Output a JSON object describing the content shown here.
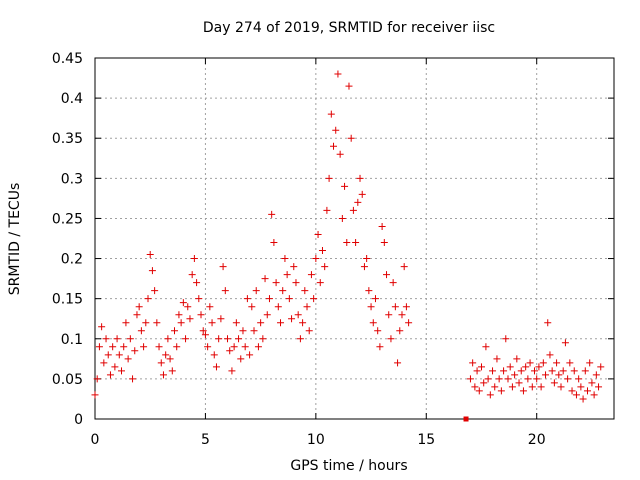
{
  "chart_data": {
    "type": "scatter",
    "title": "Day 274 of 2019, SRMTID for receiver iisc",
    "xlabel": "GPS time / hours",
    "ylabel": "SRMTID / TECUs",
    "xlim": [
      0,
      23.5
    ],
    "ylim": [
      0,
      0.45
    ],
    "xticks": [
      0,
      5,
      10,
      15,
      20
    ],
    "yticks": [
      0,
      0.05,
      0.1,
      0.15,
      0.2,
      0.25,
      0.3,
      0.35,
      0.4,
      0.45
    ],
    "x_tick_labels": [
      "0",
      "5",
      "10",
      "15",
      "20"
    ],
    "y_tick_labels": [
      "0",
      "0.05",
      "0.1",
      "0.15",
      "0.2",
      "0.25",
      "0.3",
      "0.35",
      "0.4",
      "0.45"
    ],
    "grid": true,
    "marker": "+",
    "color": "#e00000",
    "series": [
      {
        "name": "SRMTID",
        "points": [
          [
            0.0,
            0.03
          ],
          [
            0.1,
            0.05
          ],
          [
            0.2,
            0.09
          ],
          [
            0.3,
            0.115
          ],
          [
            0.4,
            0.07
          ],
          [
            0.5,
            0.1
          ],
          [
            0.6,
            0.08
          ],
          [
            0.7,
            0.055
          ],
          [
            0.8,
            0.09
          ],
          [
            0.9,
            0.065
          ],
          [
            1.0,
            0.1
          ],
          [
            1.1,
            0.08
          ],
          [
            1.2,
            0.06
          ],
          [
            1.3,
            0.09
          ],
          [
            1.4,
            0.12
          ],
          [
            1.5,
            0.075
          ],
          [
            1.6,
            0.1
          ],
          [
            1.7,
            0.05
          ],
          [
            1.8,
            0.085
          ],
          [
            1.9,
            0.13
          ],
          [
            2.0,
            0.14
          ],
          [
            2.1,
            0.11
          ],
          [
            2.2,
            0.09
          ],
          [
            2.3,
            0.12
          ],
          [
            2.4,
            0.15
          ],
          [
            2.5,
            0.205
          ],
          [
            2.6,
            0.185
          ],
          [
            2.7,
            0.16
          ],
          [
            2.8,
            0.12
          ],
          [
            2.9,
            0.09
          ],
          [
            3.0,
            0.07
          ],
          [
            3.1,
            0.055
          ],
          [
            3.2,
            0.08
          ],
          [
            3.3,
            0.1
          ],
          [
            3.4,
            0.075
          ],
          [
            3.5,
            0.06
          ],
          [
            3.6,
            0.11
          ],
          [
            3.7,
            0.09
          ],
          [
            3.8,
            0.13
          ],
          [
            3.9,
            0.12
          ],
          [
            4.0,
            0.145
          ],
          [
            4.1,
            0.1
          ],
          [
            4.2,
            0.14
          ],
          [
            4.3,
            0.125
          ],
          [
            4.4,
            0.18
          ],
          [
            4.5,
            0.2
          ],
          [
            4.6,
            0.17
          ],
          [
            4.7,
            0.15
          ],
          [
            4.8,
            0.13
          ],
          [
            4.9,
            0.11
          ],
          [
            5.0,
            0.105
          ],
          [
            5.1,
            0.09
          ],
          [
            5.2,
            0.14
          ],
          [
            5.3,
            0.12
          ],
          [
            5.4,
            0.08
          ],
          [
            5.5,
            0.065
          ],
          [
            5.6,
            0.1
          ],
          [
            5.7,
            0.125
          ],
          [
            5.8,
            0.19
          ],
          [
            5.9,
            0.16
          ],
          [
            6.0,
            0.1
          ],
          [
            6.1,
            0.085
          ],
          [
            6.2,
            0.06
          ],
          [
            6.3,
            0.09
          ],
          [
            6.4,
            0.12
          ],
          [
            6.5,
            0.1
          ],
          [
            6.6,
            0.075
          ],
          [
            6.7,
            0.11
          ],
          [
            6.8,
            0.09
          ],
          [
            6.9,
            0.15
          ],
          [
            7.0,
            0.08
          ],
          [
            7.1,
            0.14
          ],
          [
            7.2,
            0.11
          ],
          [
            7.3,
            0.16
          ],
          [
            7.4,
            0.09
          ],
          [
            7.5,
            0.12
          ],
          [
            7.6,
            0.1
          ],
          [
            7.7,
            0.175
          ],
          [
            7.8,
            0.13
          ],
          [
            7.9,
            0.15
          ],
          [
            8.0,
            0.255
          ],
          [
            8.1,
            0.22
          ],
          [
            8.2,
            0.17
          ],
          [
            8.3,
            0.14
          ],
          [
            8.4,
            0.12
          ],
          [
            8.5,
            0.16
          ],
          [
            8.6,
            0.2
          ],
          [
            8.7,
            0.18
          ],
          [
            8.8,
            0.15
          ],
          [
            8.9,
            0.125
          ],
          [
            9.0,
            0.19
          ],
          [
            9.1,
            0.17
          ],
          [
            9.2,
            0.13
          ],
          [
            9.3,
            0.1
          ],
          [
            9.4,
            0.12
          ],
          [
            9.5,
            0.16
          ],
          [
            9.6,
            0.14
          ],
          [
            9.7,
            0.11
          ],
          [
            9.8,
            0.18
          ],
          [
            9.9,
            0.15
          ],
          [
            10.0,
            0.2
          ],
          [
            10.1,
            0.23
          ],
          [
            10.2,
            0.17
          ],
          [
            10.3,
            0.21
          ],
          [
            10.4,
            0.19
          ],
          [
            10.5,
            0.26
          ],
          [
            10.6,
            0.3
          ],
          [
            10.7,
            0.38
          ],
          [
            10.8,
            0.34
          ],
          [
            10.9,
            0.36
          ],
          [
            11.0,
            0.43
          ],
          [
            11.1,
            0.33
          ],
          [
            11.2,
            0.25
          ],
          [
            11.3,
            0.29
          ],
          [
            11.4,
            0.22
          ],
          [
            11.5,
            0.415
          ],
          [
            11.6,
            0.35
          ],
          [
            11.7,
            0.26
          ],
          [
            11.8,
            0.22
          ],
          [
            11.9,
            0.27
          ],
          [
            12.0,
            0.3
          ],
          [
            12.1,
            0.28
          ],
          [
            12.2,
            0.19
          ],
          [
            12.3,
            0.2
          ],
          [
            12.4,
            0.16
          ],
          [
            12.5,
            0.14
          ],
          [
            12.6,
            0.12
          ],
          [
            12.7,
            0.15
          ],
          [
            12.8,
            0.11
          ],
          [
            12.9,
            0.09
          ],
          [
            13.0,
            0.24
          ],
          [
            13.1,
            0.22
          ],
          [
            13.2,
            0.18
          ],
          [
            13.3,
            0.13
          ],
          [
            13.4,
            0.1
          ],
          [
            13.5,
            0.17
          ],
          [
            13.6,
            0.14
          ],
          [
            13.7,
            0.07
          ],
          [
            13.8,
            0.11
          ],
          [
            13.9,
            0.13
          ],
          [
            14.0,
            0.19
          ],
          [
            14.1,
            0.14
          ],
          [
            14.2,
            0.12
          ],
          [
            16.8,
            0.0
          ],
          [
            17.0,
            0.05
          ],
          [
            17.1,
            0.07
          ],
          [
            17.2,
            0.04
          ],
          [
            17.3,
            0.06
          ],
          [
            17.4,
            0.035
          ],
          [
            17.5,
            0.065
          ],
          [
            17.6,
            0.045
          ],
          [
            17.7,
            0.09
          ],
          [
            17.8,
            0.05
          ],
          [
            17.9,
            0.03
          ],
          [
            18.0,
            0.06
          ],
          [
            18.1,
            0.04
          ],
          [
            18.2,
            0.075
          ],
          [
            18.3,
            0.05
          ],
          [
            18.4,
            0.035
          ],
          [
            18.5,
            0.06
          ],
          [
            18.6,
            0.1
          ],
          [
            18.7,
            0.05
          ],
          [
            18.8,
            0.065
          ],
          [
            18.9,
            0.04
          ],
          [
            19.0,
            0.055
          ],
          [
            19.1,
            0.075
          ],
          [
            19.2,
            0.045
          ],
          [
            19.3,
            0.06
          ],
          [
            19.4,
            0.035
          ],
          [
            19.5,
            0.065
          ],
          [
            19.6,
            0.05
          ],
          [
            19.7,
            0.07
          ],
          [
            19.8,
            0.04
          ],
          [
            19.9,
            0.06
          ],
          [
            20.0,
            0.05
          ],
          [
            20.1,
            0.065
          ],
          [
            20.2,
            0.04
          ],
          [
            20.3,
            0.07
          ],
          [
            20.4,
            0.055
          ],
          [
            20.5,
            0.12
          ],
          [
            20.6,
            0.08
          ],
          [
            20.7,
            0.06
          ],
          [
            20.8,
            0.045
          ],
          [
            20.9,
            0.07
          ],
          [
            21.0,
            0.055
          ],
          [
            21.1,
            0.04
          ],
          [
            21.2,
            0.06
          ],
          [
            21.3,
            0.095
          ],
          [
            21.4,
            0.05
          ],
          [
            21.5,
            0.07
          ],
          [
            21.6,
            0.035
          ],
          [
            21.7,
            0.06
          ],
          [
            21.8,
            0.03
          ],
          [
            21.9,
            0.05
          ],
          [
            22.0,
            0.04
          ],
          [
            22.1,
            0.025
          ],
          [
            22.2,
            0.06
          ],
          [
            22.3,
            0.035
          ],
          [
            22.4,
            0.07
          ],
          [
            22.5,
            0.045
          ],
          [
            22.6,
            0.03
          ],
          [
            22.7,
            0.055
          ],
          [
            22.8,
            0.04
          ],
          [
            22.9,
            0.065
          ]
        ]
      }
    ]
  }
}
